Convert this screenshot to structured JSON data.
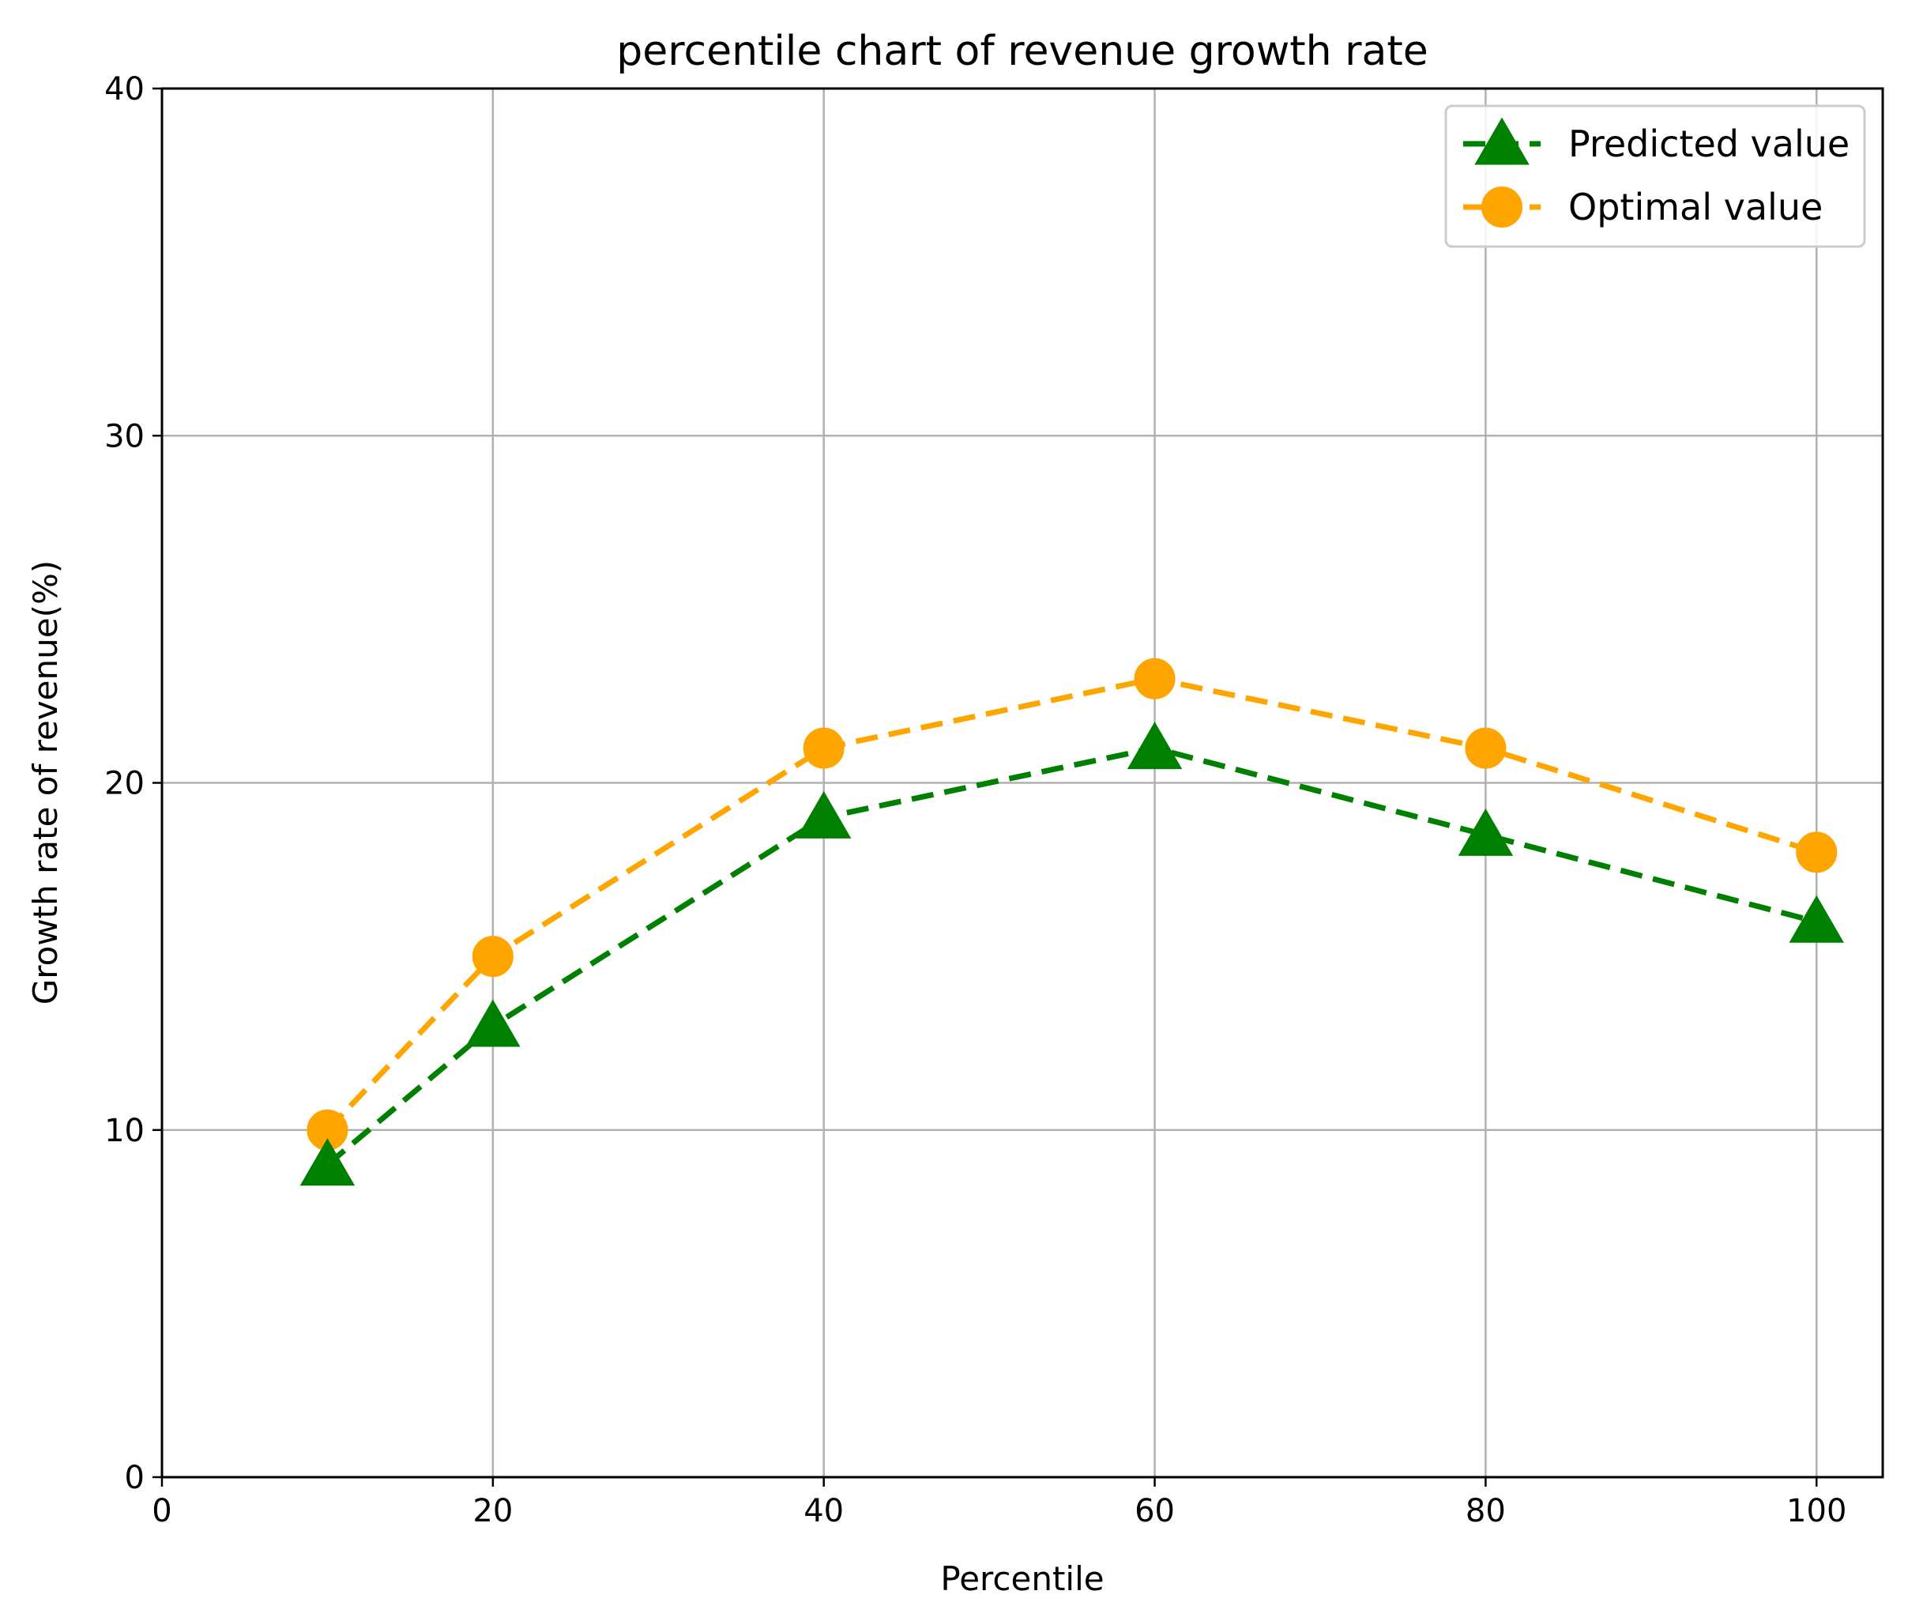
{
  "chart_data": {
    "type": "line",
    "title": "percentile chart of revenue growth rate",
    "xlabel": "Percentile",
    "ylabel": "Growth rate of revenue(%)",
    "xlim": [
      0,
      104
    ],
    "ylim": [
      0,
      40
    ],
    "xticks": [
      0,
      20,
      40,
      60,
      80,
      100
    ],
    "yticks": [
      0,
      10,
      20,
      30,
      40
    ],
    "grid": true,
    "legend_position": "top-right",
    "x": [
      10,
      20,
      40,
      60,
      80,
      100
    ],
    "series": [
      {
        "name": "Predicted value",
        "values": [
          9,
          13,
          19,
          21,
          18.5,
          16
        ],
        "color": "#008000",
        "marker": "triangle",
        "linestyle": "dashed"
      },
      {
        "name": "Optimal value",
        "values": [
          10,
          15,
          21,
          23,
          21,
          18
        ],
        "color": "#ffa500",
        "marker": "circle",
        "linestyle": "dashed"
      }
    ]
  }
}
